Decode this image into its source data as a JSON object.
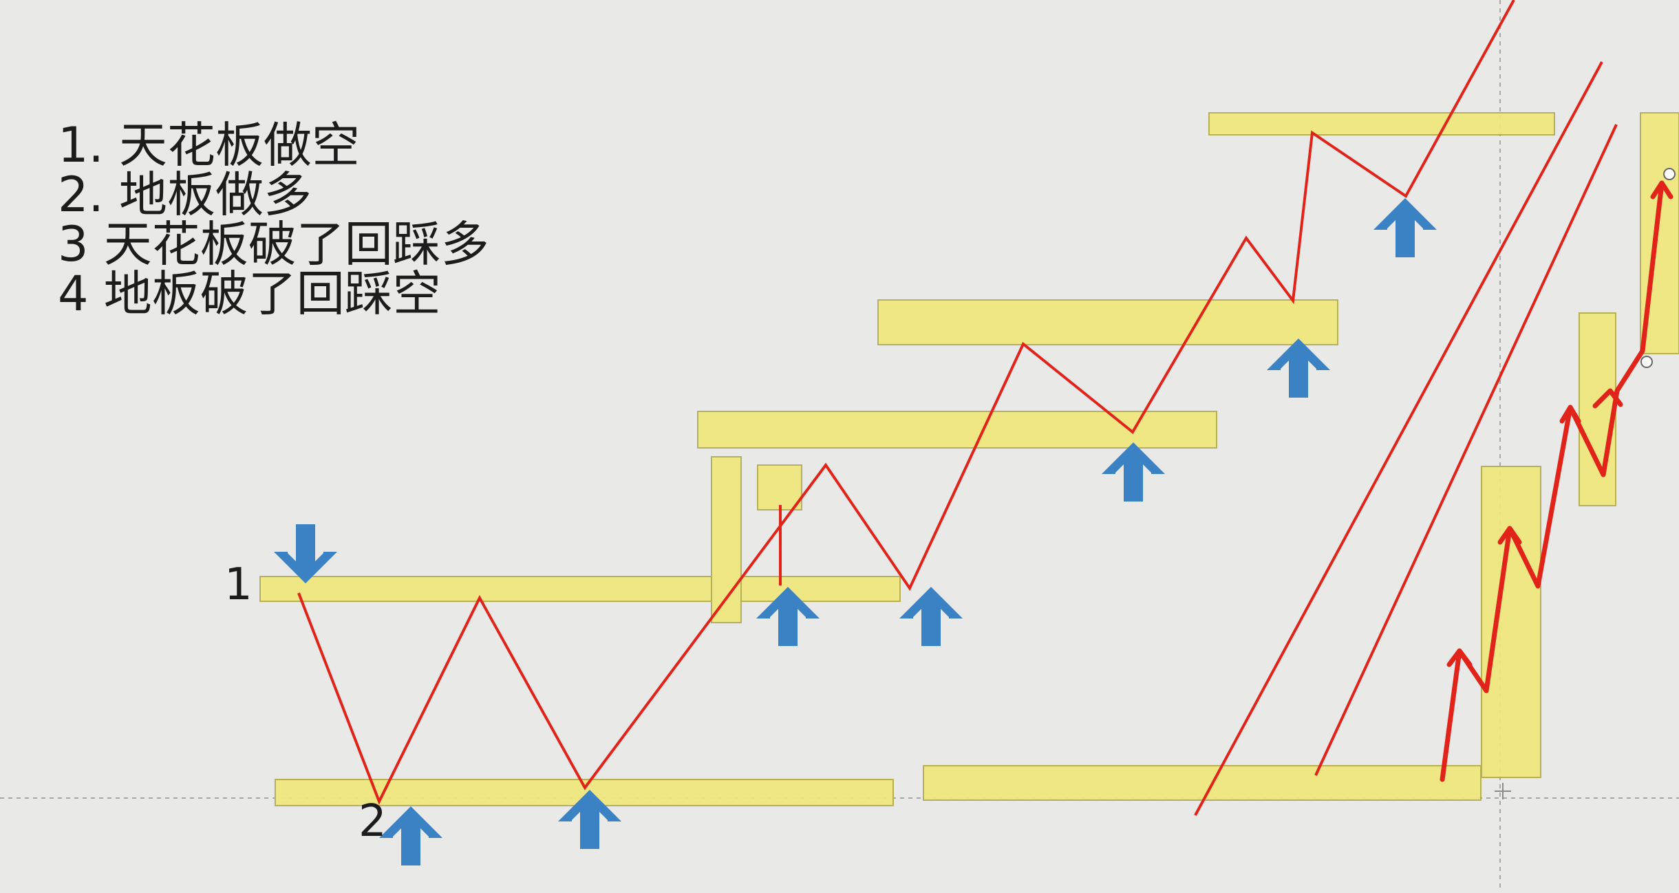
{
  "rules": [
    "1. 天花板做空",
    "2. 地板做多",
    "3 天花板破了回踩多",
    "4 地板破了回踩空"
  ],
  "labels": {
    "one": "1",
    "two": "2"
  },
  "colors": {
    "background": "#e9e9e7",
    "zone_fill": "#f0e67c",
    "zone_stroke": "#b4ab4e",
    "price_line": "#e2231a",
    "arrow": "#3a82c4"
  }
}
